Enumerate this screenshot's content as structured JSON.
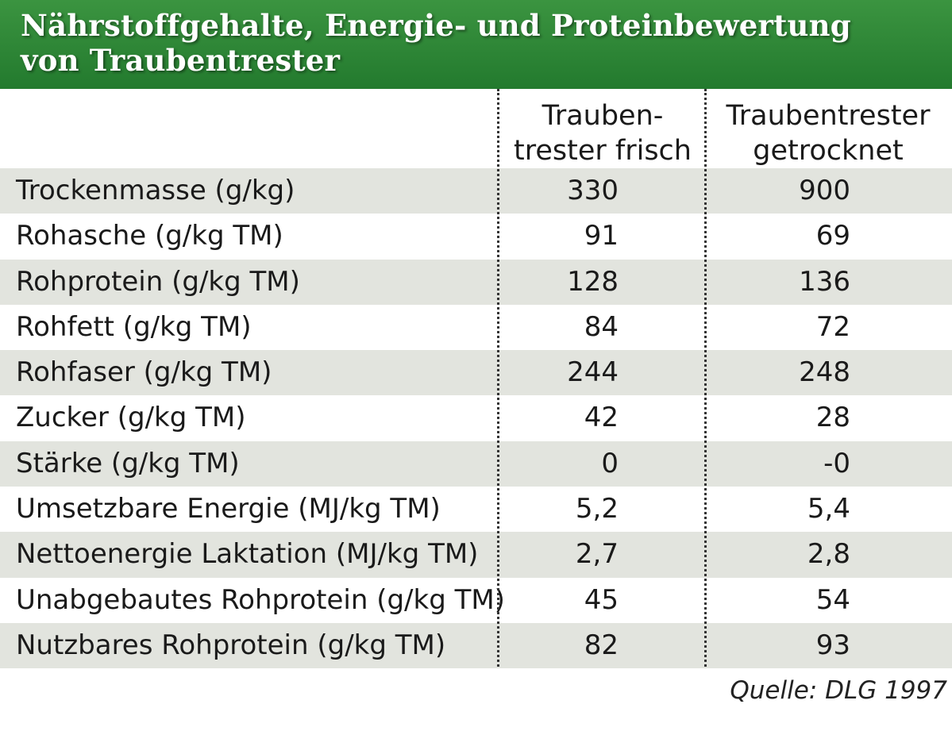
{
  "title": {
    "line1": "Nährstoffgehalte, Energie- und Proteinbewertung",
    "line2": "von Traubentrester"
  },
  "table": {
    "columns": [
      {
        "line1": "Trauben-",
        "line2": "trester frisch"
      },
      {
        "line1": "Traubentrester",
        "line2": "getrocknet"
      }
    ],
    "rows": [
      {
        "label": "Trockenmasse (g/kg)",
        "frisch": "330",
        "getrocknet": "900"
      },
      {
        "label": "Rohasche (g/kg TM)",
        "frisch": "91",
        "getrocknet": "69"
      },
      {
        "label": "Rohprotein (g/kg TM)",
        "frisch": "128",
        "getrocknet": "136"
      },
      {
        "label": "Rohfett (g/kg TM)",
        "frisch": "84",
        "getrocknet": "72"
      },
      {
        "label": "Rohfaser (g/kg TM)",
        "frisch": "244",
        "getrocknet": "248"
      },
      {
        "label": "Zucker (g/kg TM)",
        "frisch": "42",
        "getrocknet": "28"
      },
      {
        "label": "Stärke (g/kg TM)",
        "frisch": "0",
        "getrocknet": "-0"
      },
      {
        "label": "Umsetzbare Energie (MJ/kg TM)",
        "frisch": "5,2",
        "getrocknet": "5,4"
      },
      {
        "label": "Nettoenergie Laktation (MJ/kg TM)",
        "frisch": "2,7",
        "getrocknet": "2,8"
      },
      {
        "label": "Unabgebautes Rohprotein (g/kg TM)",
        "frisch": "45",
        "getrocknet": "54"
      },
      {
        "label": "Nutzbares Rohprotein (g/kg TM)",
        "frisch": "82",
        "getrocknet": "93"
      }
    ]
  },
  "source": "Quelle: DLG 1997",
  "colors": {
    "title_bar": "#2e8a37",
    "shaded_row": "#e2e4de",
    "title_text": "#ffffff"
  }
}
